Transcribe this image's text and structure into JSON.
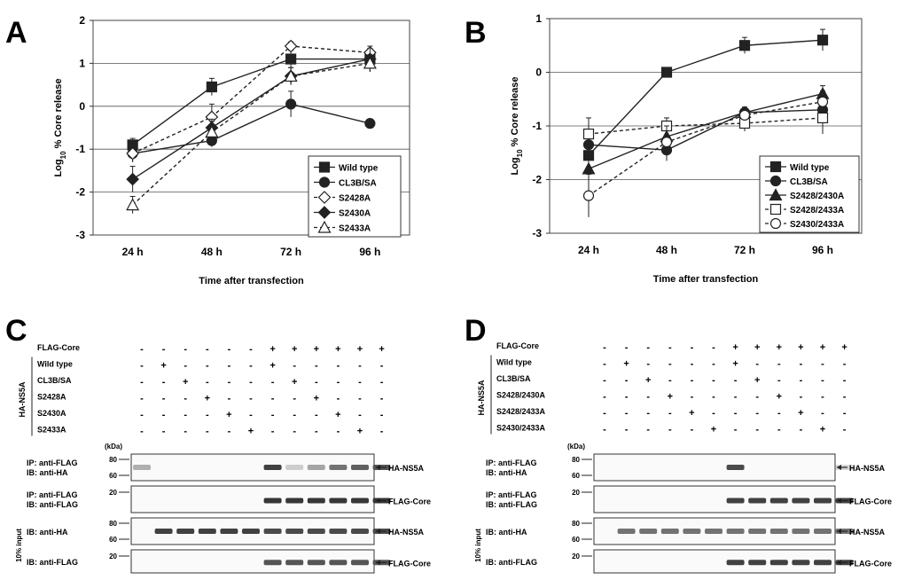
{
  "figure": {
    "panel_letters": [
      "A",
      "B",
      "C",
      "D"
    ]
  },
  "chart_data": [
    {
      "panel": "A",
      "type": "line",
      "categories": [
        "24 h",
        "48 h",
        "72 h",
        "96 h"
      ],
      "xlabel": "Time after transfection",
      "ylabel": "Log10 % Core release",
      "ylabel_main": "Log",
      "ylabel_sub": "10",
      "ylabel_rest": " % Core release",
      "ylim": [
        -3,
        2
      ],
      "yticks": [
        -3,
        -2,
        -1,
        0,
        1,
        2
      ],
      "legend_position": "bottom-right",
      "series": [
        {
          "name": "Wild type",
          "values": [
            -0.9,
            0.45,
            1.1,
            1.1
          ],
          "err": [
            0.15,
            0.2,
            0.2,
            0.2
          ],
          "marker": "square-filled",
          "dash": false,
          "color": "#222222"
        },
        {
          "name": "CL3B/SA",
          "values": [
            -1.1,
            -0.8,
            0.05,
            -0.4
          ],
          "err": [
            0.2,
            0.15,
            0.3,
            0
          ],
          "marker": "circle-filled",
          "dash": false,
          "color": "#222222"
        },
        {
          "name": "S2428A",
          "values": [
            -1.1,
            -0.25,
            1.4,
            1.25
          ],
          "err": [
            0.2,
            0.3,
            0.1,
            0.1
          ],
          "marker": "diamond-open",
          "dash": true,
          "color": "#222222"
        },
        {
          "name": "S2430A",
          "values": [
            -1.7,
            -0.5,
            0.7,
            1.1
          ],
          "err": [
            0.3,
            0.2,
            0.2,
            0.3
          ],
          "marker": "diamond-filled",
          "dash": false,
          "color": "#222222"
        },
        {
          "name": "S2433A",
          "values": [
            -2.3,
            -0.6,
            0.7,
            1.0
          ],
          "err": [
            0.2,
            0.25,
            0.2,
            0.2
          ],
          "marker": "triangle-open",
          "dash": true,
          "color": "#222222"
        }
      ]
    },
    {
      "panel": "B",
      "type": "line",
      "categories": [
        "24 h",
        "48 h",
        "72 h",
        "96 h"
      ],
      "xlabel": "Time after transfection",
      "ylabel": "Log10 % Core release",
      "ylabel_main": "Log",
      "ylabel_sub": "10",
      "ylabel_rest": " % Core release",
      "ylim": [
        -3,
        1
      ],
      "yticks": [
        -3,
        -2,
        -1,
        0,
        1
      ],
      "legend_position": "bottom-right",
      "series": [
        {
          "name": "Wild type",
          "values": [
            -1.55,
            0.0,
            0.5,
            0.6
          ],
          "err": [
            0.2,
            0.05,
            0.15,
            0.2
          ],
          "marker": "square-filled",
          "dash": false,
          "color": "#222222"
        },
        {
          "name": "CL3B/SA",
          "values": [
            -1.35,
            -1.45,
            -0.75,
            -0.7
          ],
          "err": [
            0.2,
            0.2,
            0.1,
            0.2
          ],
          "marker": "circle-filled",
          "dash": false,
          "color": "#222222"
        },
        {
          "name": "S2428/2430A",
          "values": [
            -1.8,
            -1.2,
            -0.75,
            -0.4
          ],
          "err": [
            0.3,
            0.2,
            0.1,
            0.15
          ],
          "marker": "triangle-filled",
          "dash": false,
          "color": "#222222"
        },
        {
          "name": "S2428/2433A",
          "values": [
            -1.15,
            -1.0,
            -0.95,
            -0.85
          ],
          "err": [
            0.3,
            0.15,
            0.15,
            0.3
          ],
          "marker": "square-open",
          "dash": true,
          "color": "#222222"
        },
        {
          "name": "S2430/2433A",
          "values": [
            -2.3,
            -1.3,
            -0.8,
            -0.55
          ],
          "err": [
            0.4,
            0.3,
            0.1,
            0.2
          ],
          "marker": "circle-open",
          "dash": true,
          "color": "#222222"
        }
      ]
    }
  ],
  "blots": [
    {
      "panel": "C",
      "flag_label": "FLAG-Core",
      "group_label": "HA-NS5A",
      "flag_row": [
        "-",
        "-",
        "-",
        "-",
        "-",
        "-",
        "+",
        "+",
        "+",
        "+",
        "+",
        "+"
      ],
      "rows": [
        {
          "label": "Wild type",
          "signs": [
            "-",
            "+",
            "-",
            "-",
            "-",
            "-",
            "+",
            "-",
            "-",
            "-",
            "-",
            "-"
          ]
        },
        {
          "label": "CL3B/SA",
          "signs": [
            "-",
            "-",
            "+",
            "-",
            "-",
            "-",
            "-",
            "+",
            "-",
            "-",
            "-",
            "-"
          ]
        },
        {
          "label": "S2428A",
          "signs": [
            "-",
            "-",
            "-",
            "+",
            "-",
            "-",
            "-",
            "-",
            "+",
            "-",
            "-",
            "-"
          ]
        },
        {
          "label": "S2430A",
          "signs": [
            "-",
            "-",
            "-",
            "-",
            "+",
            "-",
            "-",
            "-",
            "-",
            "+",
            "-",
            "-"
          ]
        },
        {
          "label": "S2433A",
          "signs": [
            "-",
            "-",
            "-",
            "-",
            "-",
            "+",
            "-",
            "-",
            "-",
            "-",
            "+",
            "-"
          ]
        }
      ],
      "kda_label": "(kDa)",
      "input_label": "10% input",
      "strips": [
        {
          "left1": "IP: anti-FLAG",
          "left2": "IB: anti-HA",
          "marks": [
            "80",
            "60"
          ],
          "right": "HA-NS5A"
        },
        {
          "left1": "IP: anti-FLAG",
          "left2": "IB: anti-FLAG",
          "marks": [
            "20"
          ],
          "right": "FLAG-Core"
        },
        {
          "left1": "IB: anti-HA",
          "left2": "",
          "marks": [
            "80",
            "60"
          ],
          "right": "HA-NS5A"
        },
        {
          "left1": "IB: anti-FLAG",
          "left2": "",
          "marks": [
            "20"
          ],
          "right": "FLAG-Core"
        }
      ],
      "band_intensity": [
        [
          0.3,
          0,
          0,
          0,
          0,
          0,
          0.85,
          0.15,
          0.35,
          0.6,
          0.7,
          0.75
        ],
        [
          0,
          0,
          0,
          0,
          0,
          0,
          0.9,
          0.9,
          0.9,
          0.9,
          0.9,
          0.9
        ],
        [
          0,
          0.85,
          0.85,
          0.85,
          0.85,
          0.85,
          0.8,
          0.8,
          0.8,
          0.8,
          0.8,
          0.8
        ],
        [
          0,
          0,
          0,
          0,
          0,
          0,
          0.75,
          0.75,
          0.75,
          0.75,
          0.75,
          0.75
        ]
      ]
    },
    {
      "panel": "D",
      "flag_label": "FLAG-Core",
      "group_label": "HA-NS5A",
      "flag_row": [
        "-",
        "-",
        "-",
        "-",
        "-",
        "-",
        "+",
        "+",
        "+",
        "+",
        "+",
        "+"
      ],
      "rows": [
        {
          "label": "Wild type",
          "signs": [
            "-",
            "+",
            "-",
            "-",
            "-",
            "-",
            "+",
            "-",
            "-",
            "-",
            "-",
            "-"
          ]
        },
        {
          "label": "CL3B/SA",
          "signs": [
            "-",
            "-",
            "+",
            "-",
            "-",
            "-",
            "-",
            "+",
            "-",
            "-",
            "-",
            "-"
          ]
        },
        {
          "label": "S2428/2430A",
          "signs": [
            "-",
            "-",
            "-",
            "+",
            "-",
            "-",
            "-",
            "-",
            "+",
            "-",
            "-",
            "-"
          ]
        },
        {
          "label": "S2428/2433A",
          "signs": [
            "-",
            "-",
            "-",
            "-",
            "+",
            "-",
            "-",
            "-",
            "-",
            "+",
            "-",
            "-"
          ]
        },
        {
          "label": "S2430/2433A",
          "signs": [
            "-",
            "-",
            "-",
            "-",
            "-",
            "+",
            "-",
            "-",
            "-",
            "-",
            "+",
            "-"
          ]
        }
      ],
      "kda_label": "(kDa)",
      "input_label": "10% input",
      "strips": [
        {
          "left1": "IP: anti-FLAG",
          "left2": "IB: anti-HA",
          "marks": [
            "80",
            "60"
          ],
          "right": "HA-NS5A"
        },
        {
          "left1": "IP: anti-FLAG",
          "left2": "IB: anti-FLAG",
          "marks": [
            "20"
          ],
          "right": "FLAG-Core"
        },
        {
          "left1": "IB: anti-HA",
          "left2": "",
          "marks": [
            "80",
            "60"
          ],
          "right": "HA-NS5A"
        },
        {
          "left1": "IB: anti-FLAG",
          "left2": "",
          "marks": [
            "20"
          ],
          "right": "FLAG-Core"
        }
      ],
      "band_intensity": [
        [
          0,
          0,
          0,
          0,
          0,
          0,
          0.8,
          0,
          0,
          0,
          0,
          0.1
        ],
        [
          0,
          0,
          0,
          0,
          0,
          0,
          0.85,
          0.85,
          0.85,
          0.85,
          0.85,
          0.85
        ],
        [
          0,
          0.6,
          0.6,
          0.6,
          0.6,
          0.6,
          0.6,
          0.6,
          0.6,
          0.6,
          0.6,
          0.6
        ],
        [
          0,
          0,
          0,
          0,
          0,
          0,
          0.85,
          0.85,
          0.85,
          0.85,
          0.85,
          0.85
        ]
      ]
    }
  ]
}
